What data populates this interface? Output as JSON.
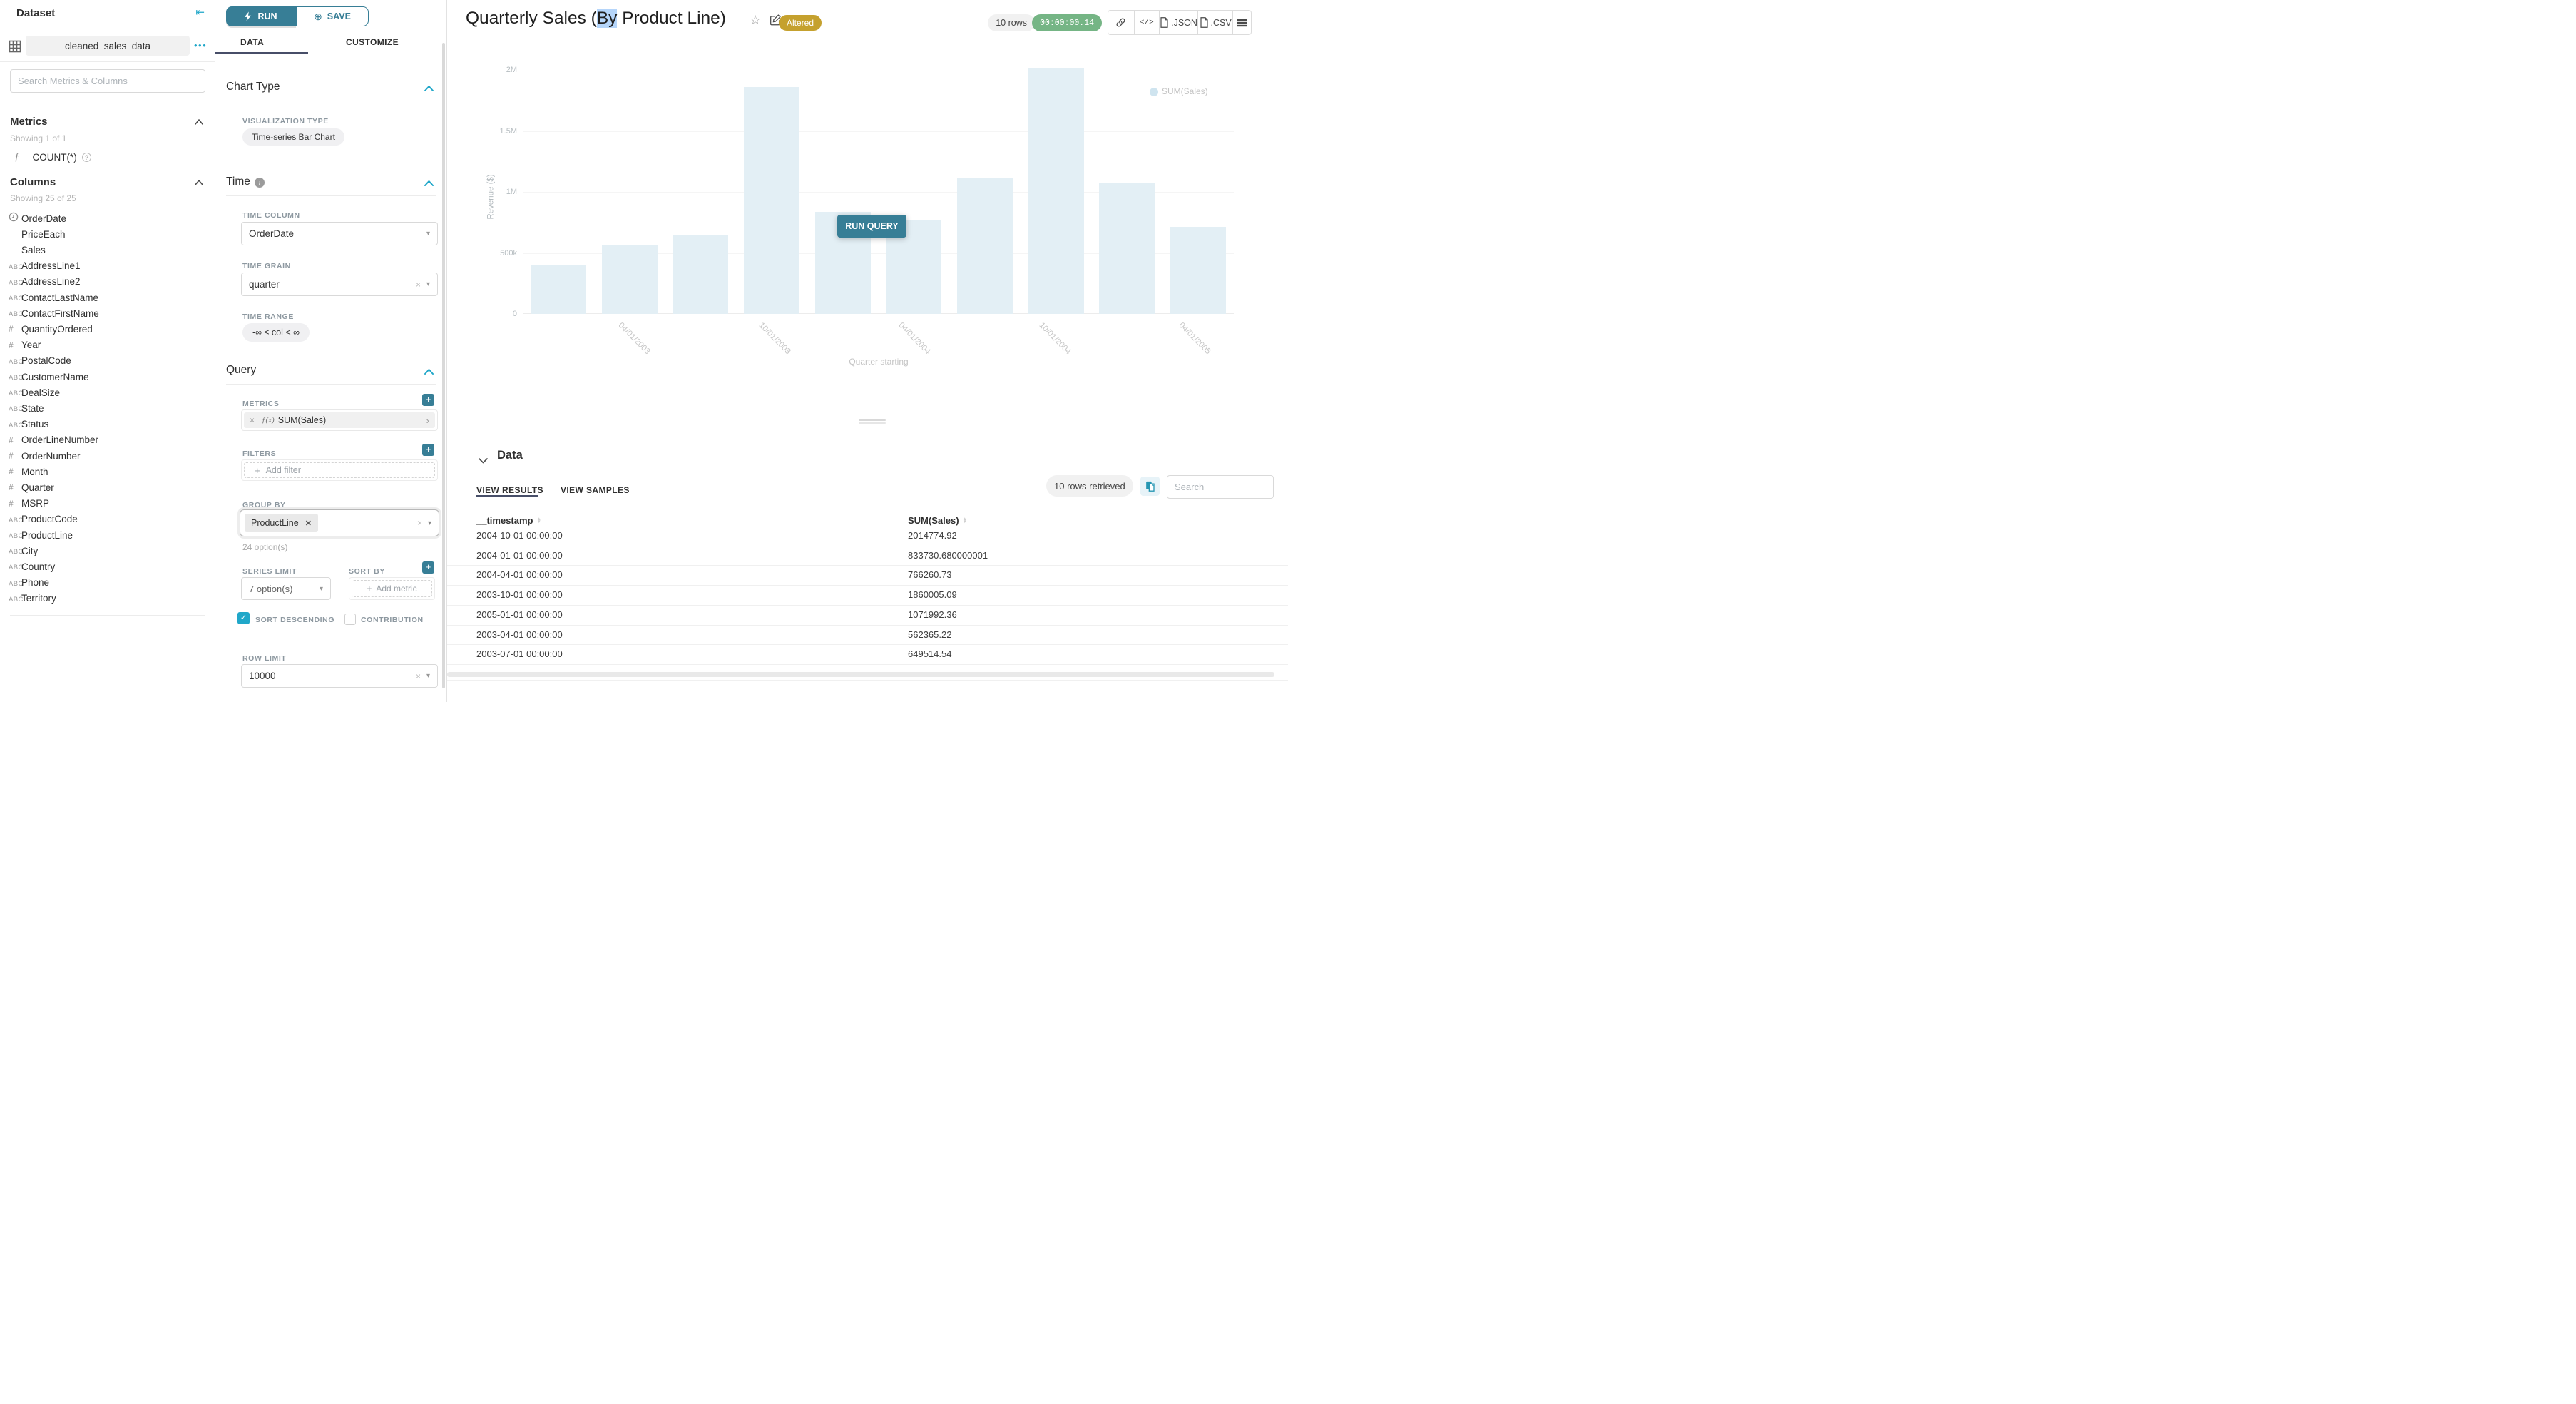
{
  "sidebar": {
    "title": "Dataset",
    "dataset_name": "cleaned_sales_data",
    "search_placeholder": "Search Metrics & Columns",
    "metrics": {
      "heading": "Metrics",
      "showing": "Showing 1 of 1",
      "items": [
        {
          "icon": "function-icon",
          "label": "COUNT(*)"
        }
      ]
    },
    "columns": {
      "heading": "Columns",
      "showing": "Showing 25 of 25",
      "items": [
        {
          "icon": "clock",
          "label": "OrderDate"
        },
        {
          "icon": "blank",
          "label": "PriceEach"
        },
        {
          "icon": "blank",
          "label": "Sales"
        },
        {
          "icon": "abc",
          "label": "AddressLine1"
        },
        {
          "icon": "abc",
          "label": "AddressLine2"
        },
        {
          "icon": "abc",
          "label": "ContactLastName"
        },
        {
          "icon": "abc",
          "label": "ContactFirstName"
        },
        {
          "icon": "num",
          "label": "QuantityOrdered"
        },
        {
          "icon": "num",
          "label": "Year"
        },
        {
          "icon": "abc",
          "label": "PostalCode"
        },
        {
          "icon": "abc",
          "label": "CustomerName"
        },
        {
          "icon": "abc",
          "label": "DealSize"
        },
        {
          "icon": "abc",
          "label": "State"
        },
        {
          "icon": "abc",
          "label": "Status"
        },
        {
          "icon": "num",
          "label": "OrderLineNumber"
        },
        {
          "icon": "num",
          "label": "OrderNumber"
        },
        {
          "icon": "num",
          "label": "Month"
        },
        {
          "icon": "num",
          "label": "Quarter"
        },
        {
          "icon": "num",
          "label": "MSRP"
        },
        {
          "icon": "abc",
          "label": "ProductCode"
        },
        {
          "icon": "abc",
          "label": "ProductLine"
        },
        {
          "icon": "abc",
          "label": "City"
        },
        {
          "icon": "abc",
          "label": "Country"
        },
        {
          "icon": "abc",
          "label": "Phone"
        },
        {
          "icon": "abc",
          "label": "Territory"
        }
      ]
    }
  },
  "panel": {
    "run_label": "RUN",
    "save_label": "SAVE",
    "tabs": [
      "DATA",
      "CUSTOMIZE"
    ],
    "chart_type": {
      "heading": "Chart Type",
      "viz_label": "VISUALIZATION TYPE",
      "viz_value": "Time-series Bar Chart"
    },
    "time": {
      "heading": "Time",
      "column_label": "TIME COLUMN",
      "column_value": "OrderDate",
      "grain_label": "TIME GRAIN",
      "grain_value": "quarter",
      "range_label": "TIME RANGE",
      "range_value": "-∞ ≤ col < ∞"
    },
    "query": {
      "heading": "Query",
      "metrics_label": "METRICS",
      "metric_prefix": "ƒ(x)",
      "metric_value": "SUM(Sales)",
      "filters_label": "FILTERS",
      "add_filter": "Add filter",
      "group_by_label": "GROUP BY",
      "group_by_value": "ProductLine",
      "options_hint": "24 option(s)",
      "series_limit_label": "SERIES LIMIT",
      "series_limit_value": "7 option(s)",
      "sort_by_label": "SORT BY",
      "add_metric": "Add metric",
      "sort_descending_label": "SORT DESCENDING",
      "contribution_label": "CONTRIBUTION",
      "row_limit_label": "ROW LIMIT",
      "row_limit_value": "10000"
    }
  },
  "header": {
    "title_prefix": "Quarterly Sales (",
    "title_highlight": "By",
    "title_suffix": " Product Line)",
    "altered_badge": "Altered",
    "rows_badge": "10 rows",
    "timer": "00:00:00.14",
    "export_json": ".JSON",
    "export_csv": ".CSV"
  },
  "chart": {
    "run_query_label": "RUN QUERY"
  },
  "chart_data": {
    "type": "bar",
    "title": "Quarterly Sales (By Product Line)",
    "series_name": "SUM(Sales)",
    "x": [
      "2003-01-01",
      "2003-04-01",
      "2003-07-01",
      "2003-10-01",
      "2004-01-01",
      "2004-04-01",
      "2004-07-01",
      "2004-10-01",
      "2005-01-01",
      "2005-04-01"
    ],
    "values": [
      400000,
      562365.22,
      649514.54,
      1860005.09,
      833730.68,
      766260.73,
      1110000,
      2014774.92,
      1071992.36,
      715000
    ],
    "xlabel": "Quarter starting",
    "ylabel": "Revenue ($)",
    "ylim": [
      0,
      2000000
    ],
    "ytick_labels": [
      "2M",
      "1.5M",
      "1M",
      "500k",
      "0"
    ],
    "xtick_labels": [
      "04/01/2003",
      "10/01/2003",
      "04/01/2004",
      "10/01/2004",
      "04/01/2005"
    ],
    "legend_position": "top-right",
    "grid": true,
    "bar_color": "#e3eff5"
  },
  "results": {
    "heading": "Data",
    "tabs": [
      "VIEW RESULTS",
      "VIEW SAMPLES"
    ],
    "rows_retrieved": "10 rows retrieved",
    "search_placeholder": "Search",
    "columns": [
      "__timestamp",
      "SUM(Sales)"
    ],
    "rows": [
      [
        "2004-10-01 00:00:00",
        "2014774.92"
      ],
      [
        "2004-01-01 00:00:00",
        "833730.680000001"
      ],
      [
        "2004-04-01 00:00:00",
        "766260.73"
      ],
      [
        "2003-10-01 00:00:00",
        "1860005.09"
      ],
      [
        "2005-01-01 00:00:00",
        "1071992.36"
      ],
      [
        "2003-04-01 00:00:00",
        "562365.22"
      ],
      [
        "2003-07-01 00:00:00",
        "649514.54"
      ]
    ]
  }
}
